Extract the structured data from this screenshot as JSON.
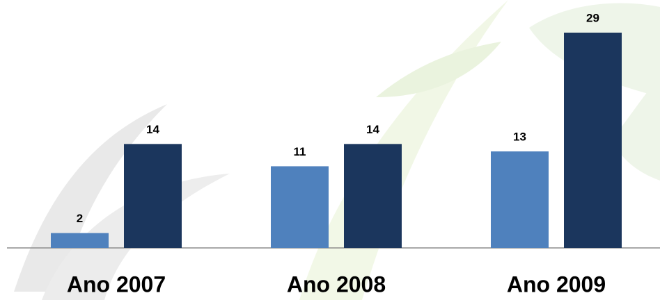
{
  "chart_data": {
    "type": "bar",
    "categories": [
      "Ano 2007",
      "Ano 2008",
      "Ano 2009"
    ],
    "series": [
      {
        "color": "#4f81bd",
        "values": [
          2,
          11,
          13
        ]
      },
      {
        "color": "#1b365d",
        "values": [
          14,
          14,
          29
        ]
      }
    ]
  }
}
